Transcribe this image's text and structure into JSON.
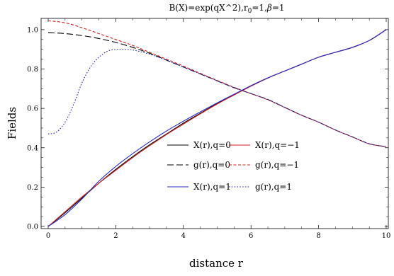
{
  "chart_data": {
    "type": "line",
    "title_parts": [
      "B(X)=exp(qX^2),r",
      "0",
      "=1,",
      "β",
      "=1"
    ],
    "xlabel": "distance r",
    "ylabel": "Fields",
    "xlim": [
      0,
      10
    ],
    "ylim": [
      0,
      1.05
    ],
    "xticks": [
      0,
      2,
      4,
      6,
      8,
      10
    ],
    "yticks": [
      0.0,
      0.2,
      0.4,
      0.6,
      0.8,
      1.0
    ],
    "ytick_labels": [
      "0.0",
      "0.2",
      "0.4",
      "0.6",
      "0.8",
      "1.0"
    ],
    "grid": false,
    "series": [
      {
        "name": "X(r),q=0",
        "color": "#000000",
        "dash": "solid",
        "x": [
          0,
          0.5,
          1,
          1.5,
          2,
          2.5,
          3,
          3.5,
          4,
          4.5,
          5,
          5.5,
          6,
          6.5,
          7,
          7.5,
          8,
          8.5,
          9,
          9.5,
          10
        ],
        "y": [
          0,
          0.07,
          0.145,
          0.22,
          0.29,
          0.355,
          0.415,
          0.47,
          0.525,
          0.575,
          0.625,
          0.67,
          0.715,
          0.755,
          0.79,
          0.825,
          0.86,
          0.885,
          0.91,
          0.945,
          1.0
        ]
      },
      {
        "name": "X(r),q=−1",
        "color": "#d62020",
        "dash": "solid",
        "x": [
          0,
          0.5,
          1,
          1.5,
          2,
          2.5,
          3,
          3.5,
          4,
          4.5,
          5,
          5.5,
          6,
          6.5,
          7,
          7.5,
          8,
          8.5,
          9,
          9.5,
          10
        ],
        "y": [
          0,
          0.075,
          0.15,
          0.22,
          0.285,
          0.35,
          0.41,
          0.467,
          0.52,
          0.572,
          0.622,
          0.668,
          0.713,
          0.754,
          0.79,
          0.825,
          0.86,
          0.885,
          0.91,
          0.945,
          1.0
        ]
      },
      {
        "name": "g(r),q=0",
        "color": "#000000",
        "dash": "long-dash",
        "x": [
          0,
          0.5,
          1,
          1.5,
          2,
          2.5,
          3,
          3.5,
          4,
          4.5,
          5,
          5.5,
          6,
          6.5,
          7,
          7.5,
          8,
          8.5,
          9,
          9.5,
          10
        ],
        "y": [
          0.985,
          0.98,
          0.97,
          0.955,
          0.935,
          0.91,
          0.88,
          0.845,
          0.81,
          0.775,
          0.74,
          0.705,
          0.675,
          0.645,
          0.605,
          0.565,
          0.53,
          0.49,
          0.455,
          0.42,
          0.405
        ]
      },
      {
        "name": "g(r),q=−1",
        "color": "#d62020",
        "dash": "short-dash",
        "x": [
          0,
          0.5,
          1,
          1.5,
          2,
          2.5,
          3,
          3.5,
          4,
          4.5,
          5,
          5.5,
          6,
          6.5,
          7,
          7.5,
          8,
          8.5,
          9,
          9.5,
          10
        ],
        "y": [
          1.045,
          1.035,
          1.01,
          0.98,
          0.95,
          0.92,
          0.885,
          0.85,
          0.815,
          0.778,
          0.742,
          0.707,
          0.675,
          0.643,
          0.604,
          0.565,
          0.53,
          0.49,
          0.455,
          0.42,
          0.405
        ]
      },
      {
        "name": "X(r),q=1",
        "color": "#2a2ac8",
        "dash": "solid",
        "x": [
          0,
          0.5,
          1,
          1.5,
          2,
          2.5,
          3,
          3.5,
          4,
          4.5,
          5,
          5.5,
          6,
          6.5,
          7,
          7.5,
          8,
          8.5,
          9,
          9.5,
          10
        ],
        "y": [
          0,
          0.06,
          0.14,
          0.23,
          0.305,
          0.37,
          0.43,
          0.485,
          0.535,
          0.582,
          0.628,
          0.672,
          0.715,
          0.755,
          0.79,
          0.825,
          0.86,
          0.885,
          0.91,
          0.945,
          1.0
        ]
      },
      {
        "name": "g(r),q=1",
        "color": "#2a2ac8",
        "dash": "dotted",
        "x": [
          0,
          0.25,
          0.5,
          0.75,
          1,
          1.25,
          1.5,
          1.75,
          2,
          2.25,
          2.5,
          3,
          3.5,
          4,
          4.5,
          5,
          5.5,
          6,
          6.5,
          7,
          7.5,
          8,
          8.5,
          9,
          9.5,
          10
        ],
        "y": [
          0.47,
          0.48,
          0.53,
          0.62,
          0.73,
          0.81,
          0.86,
          0.89,
          0.9,
          0.9,
          0.897,
          0.875,
          0.845,
          0.81,
          0.775,
          0.74,
          0.705,
          0.675,
          0.645,
          0.605,
          0.565,
          0.53,
          0.49,
          0.455,
          0.42,
          0.405
        ]
      }
    ],
    "legend": {
      "placement": "bottom-center",
      "order": [
        "X(r),q=0",
        "X(r),q=−1",
        "g(r),q=0",
        "g(r),q=−1",
        "X(r),q=1",
        "g(r),q=1"
      ]
    }
  }
}
